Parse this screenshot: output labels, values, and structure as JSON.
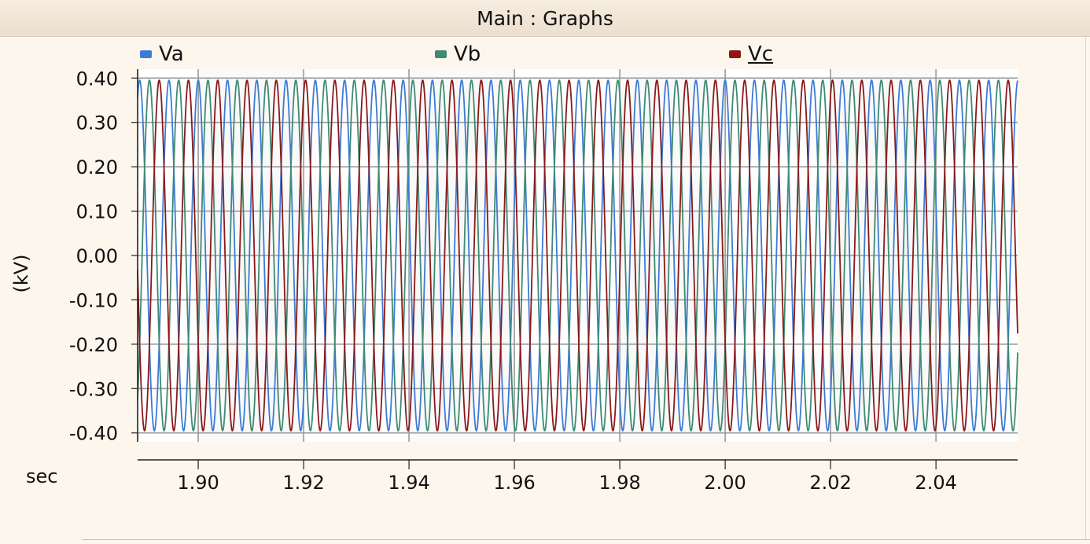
{
  "window": {
    "title": "Main : Graphs"
  },
  "colors": {
    "Va": "#3d7bd4",
    "Vb": "#3e8a72",
    "Vc": "#8b1818",
    "grid": "#9a9a9a"
  },
  "chart_data": {
    "type": "line",
    "ylabel": "(kV)",
    "xlabel": "sec",
    "xlim": [
      1.8885,
      2.0555
    ],
    "ylim": [
      -0.42,
      0.42
    ],
    "x_ticks": [
      "1.90",
      "1.92",
      "1.94",
      "1.96",
      "1.98",
      "2.00",
      "2.02",
      "2.04"
    ],
    "y_ticks": [
      "0.40",
      "0.30",
      "0.20",
      "0.10",
      "0.00",
      "-0.10",
      "-0.20",
      "-0.30",
      "-0.40"
    ],
    "grid": true,
    "legend_position": "top",
    "series": [
      {
        "name": "Va",
        "amplitude": 0.395,
        "frequency_hz": 180,
        "phase_deg": 90
      },
      {
        "name": "Vb",
        "amplitude": 0.395,
        "frequency_hz": 180,
        "phase_deg": -30
      },
      {
        "name": "Vc",
        "amplitude": 0.395,
        "frequency_hz": 180,
        "phase_deg": 210
      }
    ]
  }
}
